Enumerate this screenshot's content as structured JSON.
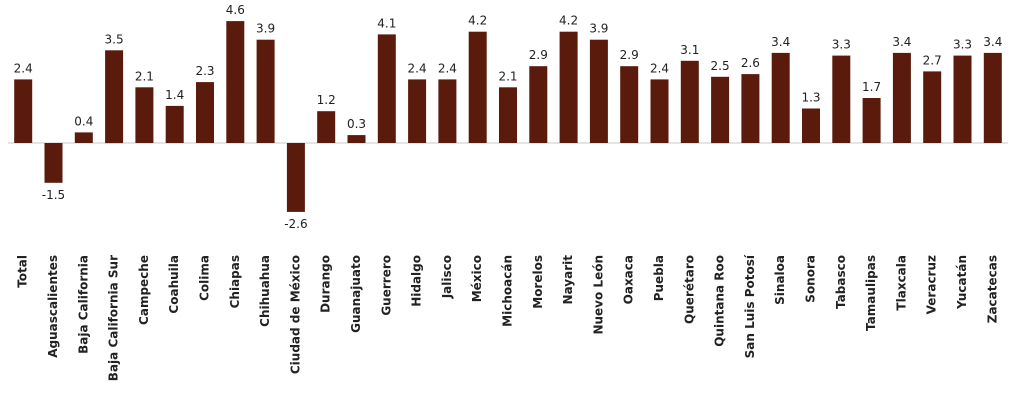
{
  "chart_data": {
    "type": "bar",
    "categories": [
      "Total",
      "Aguascalientes",
      "Baja California",
      "Baja California Sur",
      "Campeche",
      "Coahuila",
      "Colima",
      "Chiapas",
      "Chihuahua",
      "Ciudad de México",
      "Durango",
      "Guanajuato",
      "Guerrero",
      "Hidalgo",
      "Jalisco",
      "México",
      "Michoacán",
      "Morelos",
      "Nayarit",
      "Nuevo León",
      "Oaxaca",
      "Puebla",
      "Querétaro",
      "Quintana Roo",
      "San Luis Potosí",
      "Sinaloa",
      "Sonora",
      "Tabasco",
      "Tamaulipas",
      "Tlaxcala",
      "Veracruz",
      "Yucatán",
      "Zacatecas"
    ],
    "values": [
      2.4,
      -1.5,
      0.4,
      3.5,
      2.1,
      1.4,
      2.3,
      4.6,
      3.9,
      -2.6,
      1.2,
      0.3,
      4.1,
      2.4,
      2.4,
      4.2,
      2.1,
      2.9,
      4.2,
      3.9,
      2.9,
      2.4,
      3.1,
      2.5,
      2.6,
      3.4,
      1.3,
      3.3,
      1.7,
      3.4,
      2.7,
      3.3,
      3.4
    ],
    "value_labels": [
      "2.4",
      "-1.5",
      "0.4",
      "3.5",
      "2.1",
      "1.4",
      "2.3",
      "4.6",
      "3.9",
      "-2.6",
      "1.2",
      "0.3",
      "4.1",
      "2.4",
      "2.4",
      "4.2",
      "2.1",
      "2.9",
      "4.2",
      "3.9",
      "2.9",
      "2.4",
      "3.1",
      "2.5",
      "2.6",
      "3.4",
      "1.3",
      "3.3",
      "1.7",
      "3.4",
      "2.7",
      "3.3",
      "3.4"
    ],
    "title": "",
    "xlabel": "",
    "ylabel": "",
    "bar_color": "#5a1a0c",
    "grid": false
  }
}
